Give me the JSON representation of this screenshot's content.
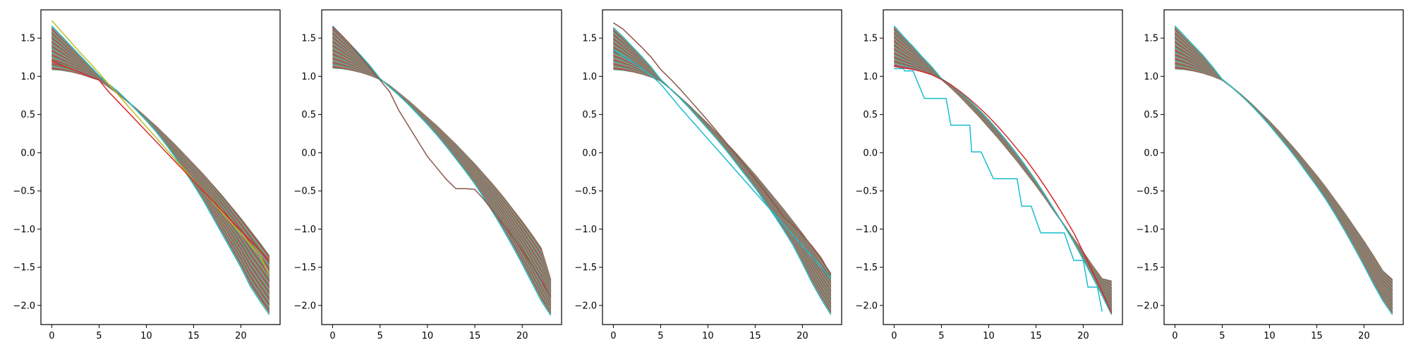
{
  "chart_data": {
    "type": "line",
    "grid": false,
    "line_count_per_panel": 100,
    "palette": [
      "#1f77b4",
      "#ff7f0e",
      "#2ca02c",
      "#d62728",
      "#9467bd",
      "#8c564b",
      "#e377c2",
      "#7f7f7f",
      "#bcbd22",
      "#17becf"
    ],
    "xlim": [
      -1.15,
      24.15
    ],
    "ylim": [
      -2.25,
      1.87
    ],
    "x_ticks": [
      0,
      5,
      10,
      15,
      20
    ],
    "x_tick_labels": [
      "0",
      "5",
      "10",
      "15",
      "20"
    ],
    "y_ticks": [
      1.5,
      1.0,
      0.5,
      0.0,
      -0.5,
      -1.0,
      -1.5,
      -2.0
    ],
    "y_tick_labels": [
      "1.5",
      "1.0",
      "0.5",
      "0.0",
      "−0.5",
      "−1.0",
      "−1.5",
      "−2.0"
    ],
    "x": [
      0,
      1,
      2,
      3,
      4,
      5,
      6,
      7,
      8,
      9,
      10,
      11,
      12,
      13,
      14,
      15,
      16,
      17,
      18,
      19,
      20,
      21,
      22,
      23
    ],
    "panels": [
      {
        "lower_envelope": [
          1.09,
          1.08,
          1.06,
          1.03,
          0.99,
          0.95,
          0.86,
          0.77,
          0.67,
          0.57,
          0.46,
          0.35,
          0.23,
          0.11,
          -0.02,
          -0.15,
          -0.28,
          -0.42,
          -0.56,
          -0.71,
          -0.86,
          -1.02,
          -1.18,
          -1.35
        ],
        "upper_envelope": [
          1.66,
          1.53,
          1.4,
          1.27,
          1.14,
          1.01,
          0.9,
          0.8,
          0.68,
          0.55,
          0.42,
          0.28,
          0.12,
          -0.05,
          -0.23,
          -0.42,
          -0.62,
          -0.84,
          -1.06,
          -1.28,
          -1.5,
          -1.75,
          -1.94,
          -2.12
        ],
        "highlighted": [
          {
            "color": "#bcbd22",
            "values": [
              1.73,
              1.59,
              1.45,
              1.31,
              1.18,
              1.04,
              0.9,
              0.76,
              0.62,
              0.48,
              0.34,
              0.2,
              0.06,
              -0.08,
              -0.22,
              -0.36,
              -0.5,
              -0.64,
              -0.78,
              -0.92,
              -1.06,
              -1.2,
              -1.34,
              -1.6
            ]
          },
          {
            "color": "#d62728",
            "values": [
              1.2,
              1.15,
              1.1,
              1.05,
              1.0,
              0.95,
              0.8,
              0.67,
              0.54,
              0.41,
              0.28,
              0.15,
              0.02,
              -0.11,
              -0.24,
              -0.37,
              -0.5,
              -0.63,
              -0.76,
              -0.89,
              -1.02,
              -1.15,
              -1.28,
              -1.41
            ]
          }
        ]
      },
      {
        "lower_envelope": [
          1.11,
          1.1,
          1.08,
          1.05,
          1.01,
          0.96,
          0.88,
          0.78,
          0.68,
          0.57,
          0.46,
          0.35,
          0.23,
          0.11,
          -0.02,
          -0.15,
          -0.29,
          -0.43,
          -0.58,
          -0.74,
          -0.9,
          -1.07,
          -1.25,
          -1.66
        ],
        "upper_envelope": [
          1.66,
          1.53,
          1.4,
          1.27,
          1.13,
          0.97,
          0.86,
          0.75,
          0.63,
          0.5,
          0.37,
          0.23,
          0.08,
          -0.08,
          -0.24,
          -0.41,
          -0.6,
          -0.8,
          -1.01,
          -1.23,
          -1.46,
          -1.7,
          -1.94,
          -2.13
        ],
        "highlighted": [
          {
            "color": "#8c564b",
            "values": [
              1.65,
              1.53,
              1.4,
              1.25,
              1.1,
              0.95,
              0.8,
              0.55,
              0.35,
              0.15,
              -0.05,
              -0.2,
              -0.35,
              -0.47,
              -0.47,
              -0.48,
              -0.62,
              -0.78,
              -0.94,
              -1.1,
              -1.28,
              -1.47,
              -1.67,
              -1.88
            ]
          }
        ]
      },
      {
        "lower_envelope": [
          1.09,
          1.08,
          1.06,
          1.03,
          0.99,
          0.94,
          0.84,
          0.73,
          0.62,
          0.5,
          0.38,
          0.25,
          0.12,
          -0.01,
          -0.15,
          -0.29,
          -0.44,
          -0.59,
          -0.74,
          -0.9,
          -1.06,
          -1.23,
          -1.4,
          -1.58
        ],
        "upper_envelope": [
          1.64,
          1.52,
          1.39,
          1.26,
          1.12,
          0.96,
          0.84,
          0.72,
          0.59,
          0.45,
          0.31,
          0.17,
          0.02,
          -0.14,
          -0.3,
          -0.46,
          -0.64,
          -0.82,
          -1.01,
          -1.21,
          -1.45,
          -1.7,
          -1.92,
          -2.12
        ],
        "highlighted": [
          {
            "color": "#8c564b",
            "values": [
              1.7,
              1.62,
              1.5,
              1.38,
              1.25,
              1.09,
              0.97,
              0.84,
              0.7,
              0.56,
              0.42,
              0.27,
              0.12,
              -0.03,
              -0.18,
              -0.34,
              -0.5,
              -0.67,
              -0.84,
              -0.95,
              -1.08,
              -1.22,
              -1.38,
              -1.6
            ]
          },
          {
            "color": "#17becf",
            "values": [
              1.35,
              1.27,
              1.19,
              1.1,
              1.01,
              0.9,
              0.75,
              0.6,
              0.46,
              0.32,
              0.18,
              0.04,
              -0.1,
              -0.24,
              -0.38,
              -0.52,
              -0.66,
              -0.8,
              -0.94,
              -1.08,
              -1.22,
              -1.36,
              -1.5,
              -1.65
            ]
          }
        ]
      },
      {
        "lower_envelope": [
          1.13,
          1.11,
          1.09,
          1.06,
          1.02,
          0.96,
          0.85,
          0.73,
          0.6,
          0.47,
          0.33,
          0.19,
          0.04,
          -0.11,
          -0.27,
          -0.43,
          -0.6,
          -0.78,
          -0.95,
          -1.13,
          -1.3,
          -1.48,
          -1.65,
          -1.68
        ],
        "upper_envelope": [
          1.66,
          1.52,
          1.39,
          1.25,
          1.12,
          0.97,
          0.89,
          0.79,
          0.68,
          0.56,
          0.43,
          0.29,
          0.14,
          -0.02,
          -0.19,
          -0.37,
          -0.56,
          -0.76,
          -0.96,
          -1.17,
          -1.4,
          -1.63,
          -1.87,
          -2.12
        ],
        "highlighted": [
          {
            "color": "#17becf",
            "steps": [
              [
                0,
                1.1
              ],
              [
                1,
                1.1
              ],
              [
                1.1,
                1.07
              ],
              [
                2,
                1.07
              ],
              [
                2,
                1.07
              ],
              [
                3.2,
                0.71
              ],
              [
                5.5,
                0.71
              ],
              [
                6,
                0.36
              ],
              [
                8,
                0.36
              ],
              [
                8.2,
                0.01
              ],
              [
                9.2,
                0.01
              ],
              [
                10.5,
                -0.34
              ],
              [
                13,
                -0.34
              ],
              [
                13.5,
                -0.7
              ],
              [
                14.5,
                -0.7
              ],
              [
                15.5,
                -1.05
              ],
              [
                18,
                -1.05
              ],
              [
                19,
                -1.41
              ],
              [
                20,
                -1.41
              ],
              [
                20.5,
                -1.76
              ],
              [
                21.5,
                -1.76
              ],
              [
                22,
                -2.08
              ]
            ]
          },
          {
            "color": "#d62728",
            "values": [
              1.13,
              1.11,
              1.09,
              1.06,
              1.02,
              0.96,
              0.89,
              0.8,
              0.7,
              0.59,
              0.47,
              0.34,
              0.2,
              0.05,
              -0.1,
              -0.27,
              -0.45,
              -0.64,
              -0.84,
              -1.05,
              -1.3,
              -1.56,
              -1.82,
              -2.1
            ]
          }
        ]
      },
      {
        "lower_envelope": [
          1.1,
          1.09,
          1.07,
          1.04,
          1.0,
          0.95,
          0.86,
          0.76,
          0.65,
          0.53,
          0.41,
          0.28,
          0.14,
          0.0,
          -0.15,
          -0.3,
          -0.46,
          -0.63,
          -0.8,
          -0.98,
          -1.16,
          -1.35,
          -1.55,
          -1.66
        ],
        "upper_envelope": [
          1.66,
          1.53,
          1.4,
          1.27,
          1.12,
          0.96,
          0.86,
          0.75,
          0.63,
          0.5,
          0.36,
          0.21,
          0.06,
          -0.1,
          -0.27,
          -0.44,
          -0.62,
          -0.82,
          -1.03,
          -1.25,
          -1.48,
          -1.72,
          -1.94,
          -2.12
        ],
        "highlighted": []
      }
    ]
  }
}
